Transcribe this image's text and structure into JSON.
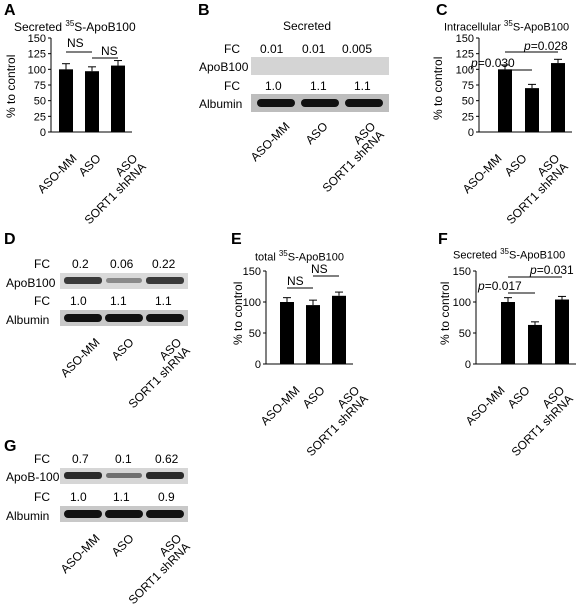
{
  "panels": {
    "A": {
      "letter": "A",
      "title_pre": "Secreted ",
      "title_sup": "35",
      "title_post": "S-ApoB100",
      "ylabel": "% to control",
      "yticks": [
        "0",
        "25",
        "50",
        "75",
        "100",
        "125",
        "150"
      ],
      "sig": [
        "NS",
        "NS"
      ],
      "categories": [
        "ASO-MM",
        "ASO",
        "ASO\nSORT1 shRNA"
      ]
    },
    "B": {
      "letter": "B",
      "title": "Secreted",
      "fc_label": "FC",
      "fc_top": [
        "0.01",
        "0.01",
        "0.005"
      ],
      "row1": "ApoB100",
      "fc_bottom": [
        "1.0",
        "1.1",
        "1.1"
      ],
      "row2": "Albumin",
      "categories": [
        "ASO-MM",
        "ASO",
        "ASO\nSORT1 shRNA"
      ]
    },
    "C": {
      "letter": "C",
      "title_pre": "Intracellular ",
      "title_sup": "35",
      "title_post": "S-ApoB100",
      "ylabel": "% to control",
      "yticks": [
        "0",
        "25",
        "50",
        "75",
        "100",
        "125",
        "150"
      ],
      "sig1": "=0.030",
      "sig2": "=0.028",
      "p": "p",
      "categories": [
        "ASO-MM",
        "ASO",
        "ASO\nSORT1 shRNA"
      ]
    },
    "D": {
      "letter": "D",
      "fc_label": "FC",
      "fc_top": [
        "0.2",
        "0.06",
        "0.22"
      ],
      "row1": "ApoB100",
      "fc_bottom": [
        "1.0",
        "1.1",
        "1.1"
      ],
      "row2": "Albumin",
      "categories": [
        "ASO-MM",
        "ASO",
        "ASO\nSORT1 shRNA"
      ]
    },
    "E": {
      "letter": "E",
      "title_pre": "total ",
      "title_sup": "35",
      "title_post": "S-ApoB100",
      "ylabel": "% to control",
      "yticks": [
        "0",
        "50",
        "100",
        "150"
      ],
      "sig": [
        "NS",
        "NS"
      ],
      "categories": [
        "ASO-MM",
        "ASO",
        "ASO\nSORT1 shRNA"
      ]
    },
    "F": {
      "letter": "F",
      "title_pre": "Secreted ",
      "title_sup": "35",
      "title_post": "S-ApoB100",
      "ylabel": "% to control",
      "yticks": [
        "0",
        "50",
        "100",
        "150"
      ],
      "sig1": "=0.017",
      "sig2": "=0.031",
      "p": "p",
      "categories": [
        "ASO-MM",
        "ASO",
        "ASO\nSORT1 shRNA"
      ]
    },
    "G": {
      "letter": "G",
      "fc_label": "FC",
      "fc_top": [
        "0.7",
        "0.1",
        "0.62"
      ],
      "row1": "ApoB-100",
      "fc_bottom": [
        "1.0",
        "1.1",
        "0.9"
      ],
      "row2": "Albumin",
      "categories": [
        "ASO-MM",
        "ASO",
        "ASO\nSORT1 shRNA"
      ]
    }
  },
  "chart_data": [
    {
      "panel": "A",
      "type": "bar",
      "categories": [
        "ASO-MM",
        "ASO",
        "ASO SORT1 shRNA"
      ],
      "values": [
        100,
        97,
        106
      ],
      "errors": [
        9,
        7,
        8
      ],
      "ylim": [
        0,
        150
      ],
      "ylabel": "% to control"
    },
    {
      "panel": "C",
      "type": "bar",
      "categories": [
        "ASO-MM",
        "ASO",
        "ASO SORT1 shRNA"
      ],
      "values": [
        100,
        70,
        110
      ],
      "errors": [
        7,
        6,
        6
      ],
      "ylim": [
        0,
        150
      ],
      "ylabel": "% to control"
    },
    {
      "panel": "E",
      "type": "bar",
      "categories": [
        "ASO-MM",
        "ASO",
        "ASO SORT1 shRNA"
      ],
      "values": [
        100,
        95,
        110
      ],
      "errors": [
        7,
        8,
        6
      ],
      "ylim": [
        0,
        150
      ],
      "ylabel": "% to control"
    },
    {
      "panel": "F",
      "type": "bar",
      "categories": [
        "ASO-MM",
        "ASO",
        "ASO SORT1 shRNA"
      ],
      "values": [
        100,
        63,
        104
      ],
      "errors": [
        7,
        5,
        5
      ],
      "ylim": [
        0,
        150
      ],
      "ylabel": "% to control"
    }
  ]
}
